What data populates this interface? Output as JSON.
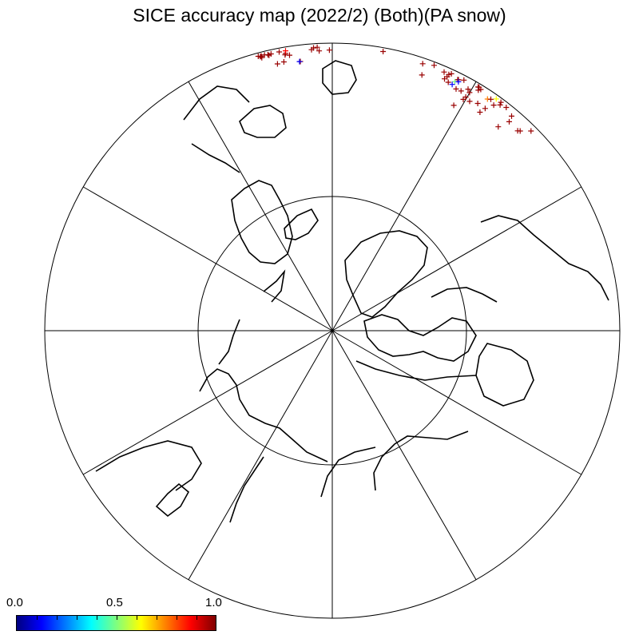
{
  "title": "SICE accuracy map (2022/2) (Both)(PA snow)",
  "map": {
    "projection": "north-polar-stereographic",
    "meridian_spokes": 12,
    "latitude_circle_inner": "present",
    "marker": "+"
  },
  "colorbar": {
    "min_label": "0.0",
    "mid_label": "0.5",
    "max_label": "1.0",
    "colors": [
      "#00007f",
      "#0000ff",
      "#007fff",
      "#00ffff",
      "#7fff7f",
      "#ffff00",
      "#ff7f00",
      "#ff0000",
      "#7f0000"
    ]
  },
  "colors": {
    "dominant_marker": "#990000",
    "coast": "#000000"
  }
}
